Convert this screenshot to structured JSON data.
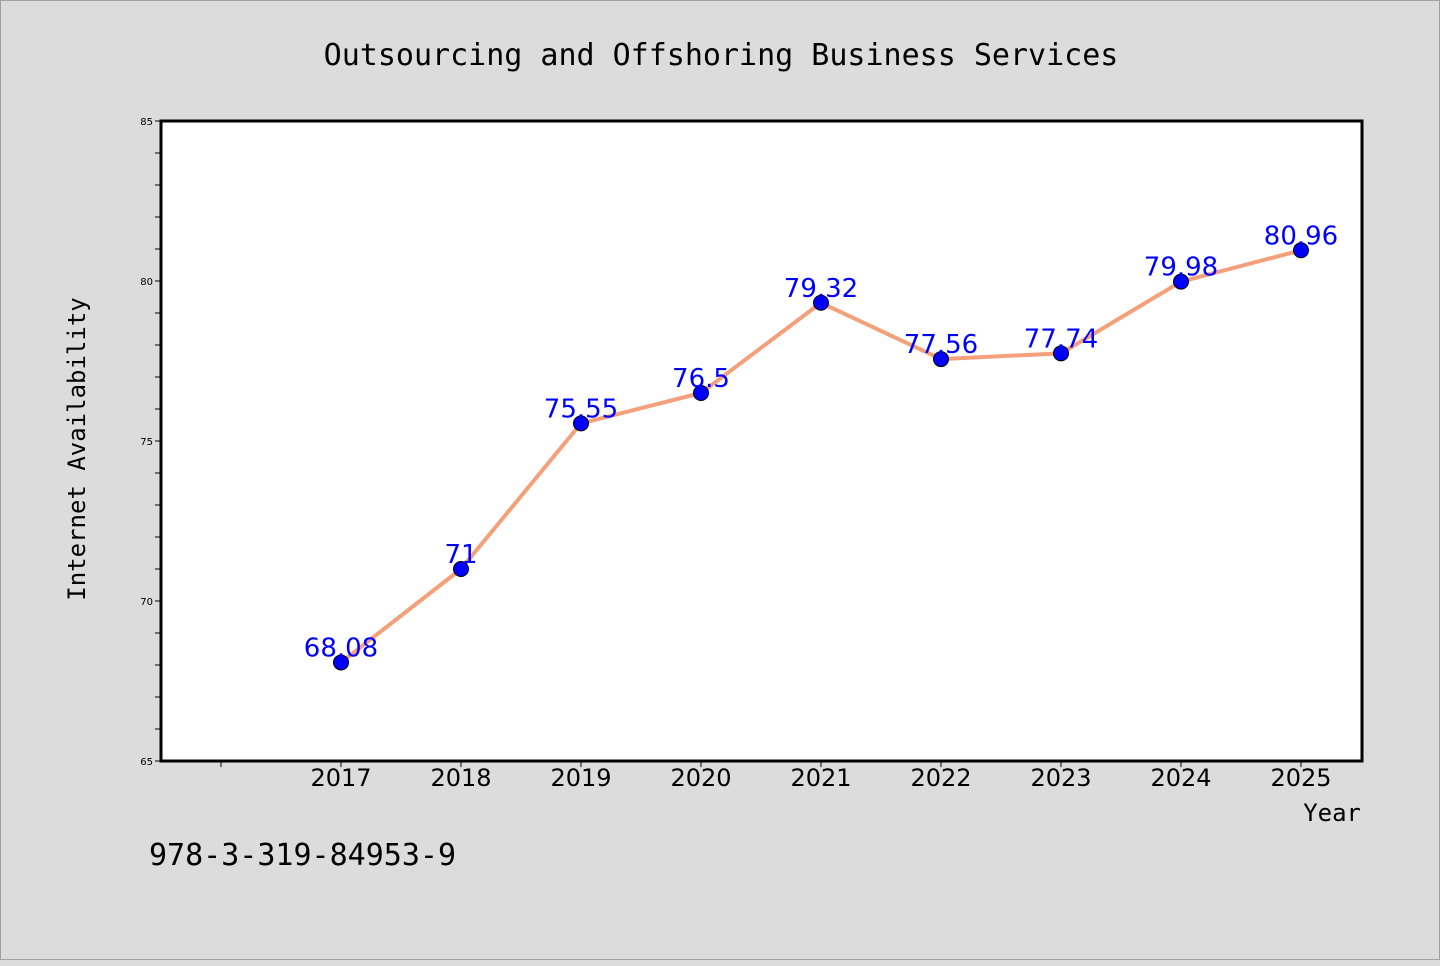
{
  "chart_data": {
    "type": "line",
    "title": "Outsourcing and Offshoring Business Services",
    "xlabel": "Year",
    "ylabel": "Internet Availability",
    "categories": [
      "2017",
      "2018",
      "2019",
      "2020",
      "2021",
      "2022",
      "2023",
      "2024",
      "2025"
    ],
    "series": [
      {
        "values": [
          68.08,
          71,
          75.55,
          76.5,
          79.32,
          77.56,
          77.74,
          79.98,
          80.96
        ],
        "labels": [
          "68.08",
          "71",
          "75.55",
          "76.5",
          "79.32",
          "77.56",
          "77.74",
          "79.98",
          "80.96"
        ]
      }
    ],
    "ylim": [
      65,
      85
    ],
    "yticks": [
      "65",
      "70",
      "75",
      "80",
      "85"
    ],
    "ytick_values": [
      65,
      70,
      75,
      80,
      85
    ],
    "y_minor_step": 1,
    "grid": false,
    "line_color": "#f4a07a",
    "marker_color": "#0000ff",
    "label_color": "#0000ff"
  },
  "footnote": "978-3-319-84953-9"
}
